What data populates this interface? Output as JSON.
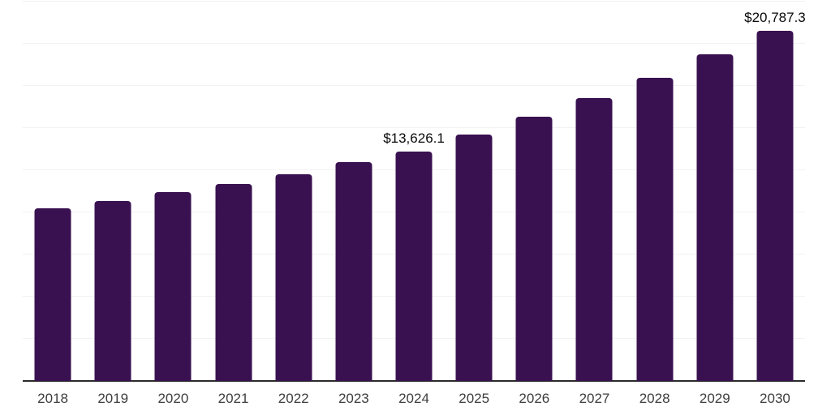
{
  "chart_data": {
    "type": "bar",
    "title": "",
    "xlabel": "",
    "ylabel": "",
    "categories": [
      "2018",
      "2019",
      "2020",
      "2021",
      "2022",
      "2023",
      "2024",
      "2025",
      "2026",
      "2027",
      "2028",
      "2029",
      "2030"
    ],
    "values": [
      10250,
      10650,
      11200,
      11700,
      12250,
      13000,
      13626.1,
      14620,
      15690,
      16800,
      18000,
      19370,
      20787.3
    ],
    "labeled_values": {
      "2024": 13626.1,
      "2030": 20787.3
    },
    "data_labels": [
      {
        "index": 6,
        "category": "2024",
        "text": "$13,626.1"
      },
      {
        "index": 12,
        "category": "2030",
        "text": "$20,787.3"
      }
    ],
    "value_prefix": "$",
    "ylim": [
      0,
      22500
    ],
    "gridline_step": 2500,
    "y_axis_tick_labels": "none shown",
    "grid": "horizontal light-gray lines only",
    "legend": "none",
    "bar_color": "#391150",
    "gridline_color": "#f2f2f2",
    "axis_line_color": "#2b2b2b",
    "x_tick_label_color": "#3d3d3d",
    "data_label_color": "#0a0a0a",
    "background_color": "#ffffff"
  }
}
